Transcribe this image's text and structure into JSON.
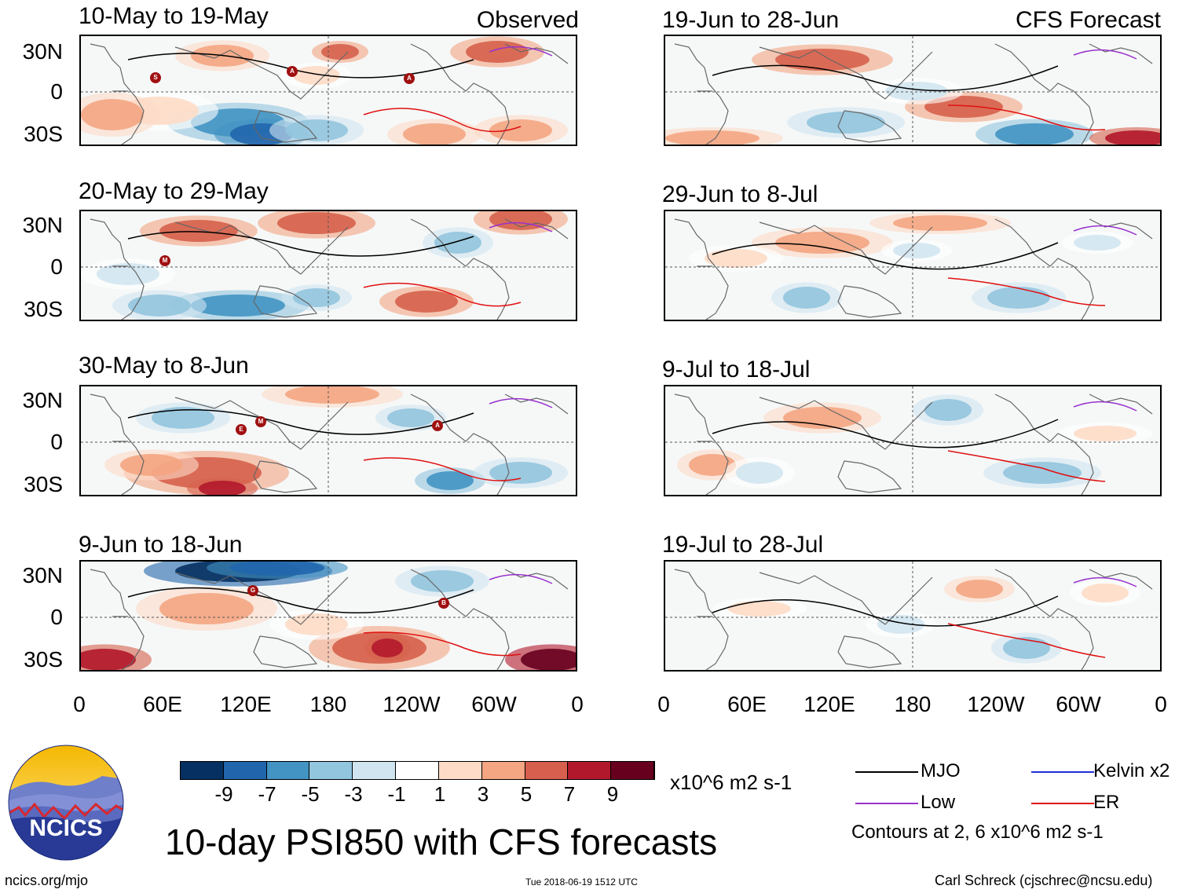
{
  "observed_tag": "Observed",
  "forecast_tag": "CFS Forecast",
  "panels_left": [
    {
      "title": "10-May to 19-May"
    },
    {
      "title": "20-May to 29-May"
    },
    {
      "title": "30-May to 8-Jun"
    },
    {
      "title": "9-Jun to 18-Jun"
    }
  ],
  "panels_right": [
    {
      "title": "19-Jun to 28-Jun"
    },
    {
      "title": "29-Jun to 8-Jul"
    },
    {
      "title": "9-Jul to 18-Jul"
    },
    {
      "title": "19-Jul to 28-Jul"
    }
  ],
  "lat_labels": [
    "30N",
    "0",
    "30S"
  ],
  "lon_labels": [
    "0",
    "60E",
    "120E",
    "180",
    "120W",
    "60W",
    "0"
  ],
  "colorbar": {
    "colors": [
      "#053061",
      "#2166ac",
      "#4393c3",
      "#92c5de",
      "#d1e5f0",
      "#ffffff",
      "#fddbc7",
      "#f4a582",
      "#d6604d",
      "#b2182b",
      "#67001f"
    ],
    "ticks": [
      "-9",
      "-7",
      "-5",
      "-3",
      "-1",
      "1",
      "3",
      "5",
      "7",
      "9"
    ],
    "units": "x10^6 m2 s-1"
  },
  "legend": {
    "mjo": {
      "label": "MJO",
      "color": "#000000"
    },
    "kelvin": {
      "label": "Kelvin x2",
      "color": "#1f2fd6"
    },
    "low": {
      "label": "Low",
      "color": "#9932cc"
    },
    "er": {
      "label": "ER",
      "color": "#e01010"
    },
    "contours_note": "Contours at 2, 6 x10^6 m2 s-1"
  },
  "main_title": "10-day PSI850 with CFS forecasts",
  "logo_text": "NCICS",
  "footer": {
    "url": "ncics.org/mjo",
    "timestamp": "Tue 2018-06-19 1512 UTC",
    "credit": "Carl Schreck (cjschrec@ncsu.edu)"
  },
  "storm_letters": [
    "S",
    "A",
    "A",
    "M",
    "E",
    "M",
    "A",
    "G",
    "B"
  ]
}
